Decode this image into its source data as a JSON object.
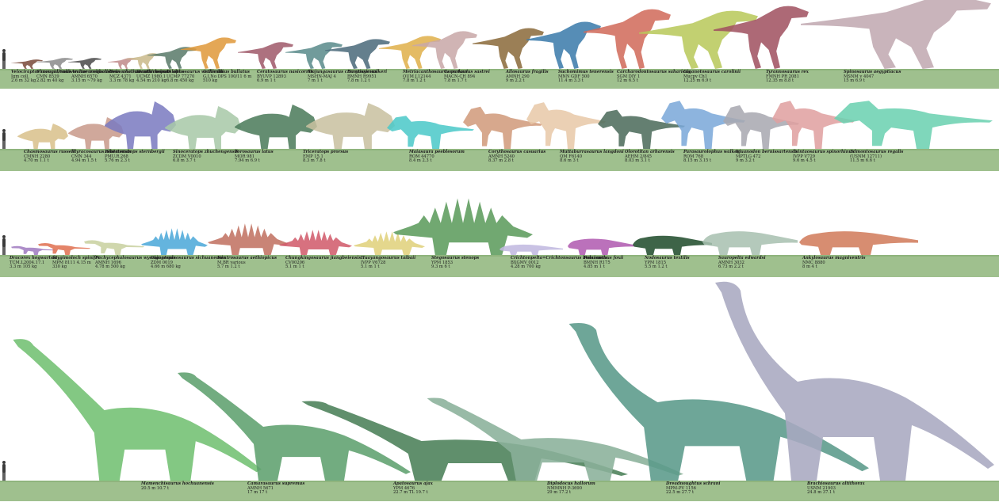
{
  "colors": {
    "ground": "#9fc08e",
    "ground_dark": "#8fb47d",
    "human": "#3a3a3a",
    "label_text": "#1e1e1e"
  },
  "rows": [
    {
      "id": "theropods",
      "animals": [
        {
          "name": "Velociraptor mongoliensis",
          "specimen": "Igm coll.",
          "size": "2.6 m 32 kg",
          "color": "#7a4a3a",
          "shape": "theropod"
        },
        {
          "name": "Shuvuuia/Gobivenator inequalis",
          "specimen": "CMN 8539",
          "size": "2.82 m 40 kg",
          "color": "#8a8a8a",
          "shape": "theropod"
        },
        {
          "name": "Archaeornithomimus asiaticus",
          "specimen": "AMNH 6570",
          "size": "3.15 m ~79 kg",
          "color": "#4a4a4a",
          "shape": "theropod"
        },
        {
          "name": "Deinocheirus antirrhopus",
          "specimen": "MCZ 4371",
          "size": "3.3 m 78 kg",
          "color": "#c08a8a",
          "shape": "theropod"
        },
        {
          "name": "Struthiomimus altus",
          "specimen": "UCMZ 1980.1",
          "size": "4.54 m 210 kg",
          "color": "#c9b98a",
          "shape": "theropod"
        },
        {
          "name": "Dilophosaurus wetherilli",
          "specimen": "UCMP 77270",
          "size": "6.8 m 450 kg",
          "color": "#5a7a6a",
          "shape": "theropod"
        },
        {
          "name": "Gallimimus bullatus",
          "specimen": "G.I.No DPS 100/11 6 m",
          "size": "510 kg",
          "color": "#e0983a",
          "shape": "theropod"
        },
        {
          "name": "Ceratosaurus nasicornis",
          "specimen": "BYUVP 12893",
          "size": "6.9 m 1 t",
          "color": "#a05a6a",
          "shape": "theropod"
        },
        {
          "name": "Majungasaurus crenatissimus",
          "specimen": "MSHN-MAJ 4",
          "size": "7 m 1 t",
          "color": "#5a8a8a",
          "shape": "theropod"
        },
        {
          "name": "Baryonyx walkeri",
          "specimen": "BMNH R9951",
          "size": "7.8 m 1.2 t",
          "color": "#4a6a7a",
          "shape": "theropod"
        },
        {
          "name": "Metriacanthosaurus parkeri",
          "specimen": "OUM J.12144",
          "size": "7.8 m 1.2 t",
          "color": "#e0b04a",
          "shape": "theropod"
        },
        {
          "name": "Carnotaurus sastrei",
          "specimen": "MACN-CH 894",
          "size": "7.8 m 1.7 t",
          "color": "#c8a8a8",
          "shape": "theropod"
        },
        {
          "name": "Allosaurus fragilis",
          "specimen": "AMNH 290",
          "size": "9 m 2.2 t",
          "color": "#8a6a3a",
          "shape": "theropod"
        },
        {
          "name": "Suchomimus tenerensis",
          "specimen": "MNN GDF 500",
          "size": "11.4 m 3.3 t",
          "color": "#3a7aaa",
          "shape": "theropod"
        },
        {
          "name": "Carcharodontosaurus saharicus",
          "specimen": "SGM DIY 1",
          "size": "12 m 6.5 t",
          "color": "#d06a5a",
          "shape": "theropod"
        },
        {
          "name": "Giganotosaurus carolinii",
          "specimen": "Mucpv Ch1",
          "size": "12.25 m 6.9 t",
          "color": "#b8c85a",
          "shape": "theropod"
        },
        {
          "name": "Tyrannosaurus rex",
          "specimen": "FMNH PR 2081",
          "size": "12.35 m 8.8 t",
          "color": "#a05060",
          "shape": "theropod"
        },
        {
          "name": "Spinosaurus aegyptiacus",
          "specimen": "MSNM v 4047",
          "size": "15 m 6.9 t",
          "color": "#c0a8b0",
          "shape": "theropod"
        }
      ]
    },
    {
      "id": "ornithopods-ceratopsians",
      "animals": [
        {
          "name": "Chasmosaurus russelli",
          "specimen": "CMNH 2280",
          "size": "4.70 m 1.1 t",
          "color": "#d8c08a",
          "shape": "ceratopsian"
        },
        {
          "name": "Styracosaurus albertensis",
          "specimen": "CMN 344",
          "size": "4.94 m 1.5 t",
          "color": "#c89a8a",
          "shape": "ceratopsian"
        },
        {
          "name": "Pentaceratops sternbergii",
          "specimen": "PMU.R.268",
          "size": "5.76 m 2.3 t",
          "color": "#7a7ac0",
          "shape": "ceratopsian"
        },
        {
          "name": "Sinoceratops zhuchengensis",
          "specimen": "ZCDM V0010",
          "size": "6.8 m 3.7 t",
          "color": "#a8c8a8",
          "shape": "ceratopsian"
        },
        {
          "name": "Torosaurus latus",
          "specimen": "MOR 981",
          "size": "7.94 m 6.9 t",
          "color": "#4a7a5a",
          "shape": "ceratopsian"
        },
        {
          "name": "Triceratops prorsus",
          "specimen": "EMP 15.1",
          "size": "8.3 m 7.8 t",
          "color": "#c8c0a0",
          "shape": "ceratopsian"
        },
        {
          "name": "Maiasaura peeblesorum",
          "specimen": "ROM 44770",
          "size": "8.4 m 2.3 t",
          "color": "#4ac8c8",
          "shape": "hadrosaur"
        },
        {
          "name": "Corythosaurus casuarius",
          "specimen": "AMNH 5240",
          "size": "8.37 m 2.8 t",
          "color": "#d09a7a",
          "shape": "hadrosaur"
        },
        {
          "name": "Muttaburrasaurus langdoni",
          "specimen": "QM F6140",
          "size": "8.6 m 3 t",
          "color": "#e8c8a8",
          "shape": "hadrosaur"
        },
        {
          "name": "Olorotitan arharensis",
          "specimen": "AEHM 2/845",
          "size": "8.03 m 3.1 t",
          "color": "#4a6a5a",
          "shape": "hadrosaur"
        },
        {
          "name": "Parasaurolophus walkeri",
          "specimen": "ROM 768",
          "size": "8.15 m 3.15 t",
          "color": "#7aa8d8",
          "shape": "hadrosaur"
        },
        {
          "name": "Iguanodon bernissartensis",
          "specimen": "MPTLG 472",
          "size": "9 m 3.2 t",
          "color": "#a8a8b0",
          "shape": "hadrosaur"
        },
        {
          "name": "Tsintaosaurus spinorhinus",
          "specimen": "IVPP V729",
          "size": "9.6 m 4.5 t",
          "color": "#e0a0a0",
          "shape": "hadrosaur"
        },
        {
          "name": "Edmontosaurus regalis",
          "specimen": "(USNM 12711)",
          "size": "11.5 m 6.6 t",
          "color": "#6ad0b0",
          "shape": "hadrosaur"
        }
      ]
    },
    {
      "id": "thyreophorans",
      "animals": [
        {
          "name": "Dracorex hogwartsia",
          "specimen": "TCM.L2004.17.1",
          "size": "3.3 m 105 kg",
          "color": "#a07ac0",
          "shape": "biped-small"
        },
        {
          "name": "Stygimoloch spinifer",
          "specimen": "MPM 8111 4.15 m",
          "size": "330 kg",
          "color": "#e07050",
          "shape": "biped-small"
        },
        {
          "name": "Pachycephalosaurus wyomingensis",
          "specimen": "AMNH 1696",
          "size": "4.78 m 500 kg",
          "color": "#c8d0a0",
          "shape": "biped-small"
        },
        {
          "name": "Gigantspinosaurus sichuanensis",
          "specimen": "ZDM 0019",
          "size": "4.66 m 680 kg",
          "color": "#4aa8d8",
          "shape": "stegosaur"
        },
        {
          "name": "Kentrosaurus aethiopicus",
          "specimen": "M.BR various",
          "size": "5.7 m 1.2 t",
          "color": "#c07060",
          "shape": "stegosaur"
        },
        {
          "name": "Chungkingosaurus jiangbeiensis",
          "specimen": "CV00206",
          "size": "5.1 m 1 t",
          "color": "#d05a6a",
          "shape": "stegosaur"
        },
        {
          "name": "Huayangosaurus taibaii",
          "specimen": "IVPP V6728",
          "size": "5.1 m 1 t",
          "color": "#e0d07a",
          "shape": "stegosaur"
        },
        {
          "name": "Stegosaurus stenops",
          "specimen": "YPM 1853",
          "size": "9.3 m 6 t",
          "color": "#5a9a5a",
          "shape": "stegosaur"
        },
        {
          "name": "Crichtonpelta=Crichtonsaurus benxiensis",
          "specimen": "BXGMV 0012",
          "size": "4.28 m 700 kg",
          "color": "#c0b8e0",
          "shape": "ankylosaur"
        },
        {
          "name": "Polacanthus foxii",
          "specimen": "BMNH R175",
          "size": "4.85 m 1 t",
          "color": "#b05ab0",
          "shape": "ankylosaur"
        },
        {
          "name": "Nodosaurus textilis",
          "specimen": "YPM 1815",
          "size": "5.5 m 1.2 t",
          "color": "#1e4a2a",
          "shape": "ankylosaur"
        },
        {
          "name": "Sauropelta edwardsi",
          "specimen": "AMNH 3032",
          "size": "6.73 m 2.2 t",
          "color": "#a8c0b0",
          "shape": "ankylosaur"
        },
        {
          "name": "Ankylosaurus magniventris",
          "specimen": "NMC 8880",
          "size": "8 m 4 t",
          "color": "#d07a5a",
          "shape": "ankylosaur"
        }
      ]
    },
    {
      "id": "sauropods",
      "animals": [
        {
          "name": "Mamenchisaurus hochuanensis",
          "specimen": "",
          "size": "20.5 m 10.7 t",
          "color": "#72c072",
          "shape": "sauropod"
        },
        {
          "name": "Camarasaurus supremus",
          "specimen": "AMNH 5671",
          "size": "17 m 17 t",
          "color": "#5ea06e",
          "shape": "sauropod"
        },
        {
          "name": "Apatosaurus ajax",
          "specimen": "YPM 4676",
          "size": "22.7 m TL 19.7 t",
          "color": "#4a8058",
          "shape": "sauropod"
        },
        {
          "name": "Diplodocus hallorum",
          "specimen": "NMMNH P-3690",
          "size": "29 m 17.2 t",
          "color": "#8ab09a",
          "shape": "sauropod"
        },
        {
          "name": "Dreadnoughtus schrani",
          "specimen": "MPM-PV 1156",
          "size": "22.5 m 27.7 t",
          "color": "#5a9a8a",
          "shape": "sauropod"
        },
        {
          "name": "Brachiosaurus altithorax",
          "specimen": "USNM 21903",
          "size": "24.8 m 37.1 t",
          "color": "#a8a8c0",
          "shape": "sauropod"
        }
      ]
    }
  ]
}
